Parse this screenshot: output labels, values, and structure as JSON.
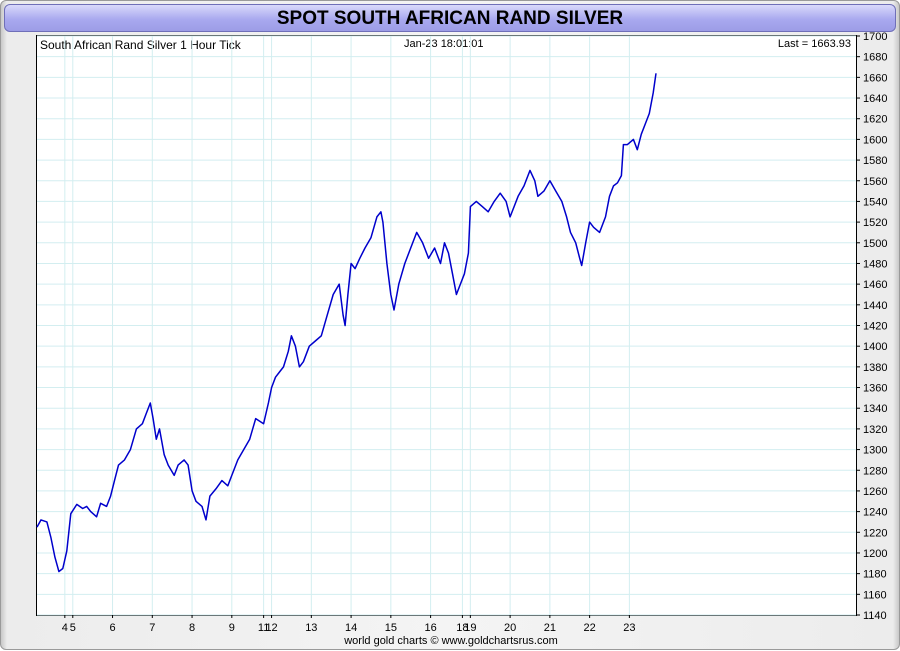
{
  "title": "SPOT SOUTH AFRICAN RAND SILVER",
  "header": {
    "series_label": "South African Rand Silver 1 Hour Tick",
    "timestamp": "Jan-23  18:01:01",
    "last_label": "Last = 1663.93"
  },
  "footer": "world gold charts © www.goldchartsrus.com",
  "colors": {
    "line": "#0000cc",
    "grid": "#d3eef0",
    "title_bar": "#a9a9ef"
  },
  "chart_data": {
    "type": "line",
    "title": "SPOT SOUTH AFRICAN RAND SILVER",
    "series_name": "South African Rand Silver 1 Hour Tick",
    "last_value": 1663.93,
    "xlabel": "",
    "ylabel": "",
    "ylim": [
      1140,
      1700
    ],
    "y_ticks": [
      1140,
      1160,
      1180,
      1200,
      1220,
      1240,
      1260,
      1280,
      1300,
      1320,
      1340,
      1360,
      1380,
      1400,
      1420,
      1440,
      1460,
      1480,
      1500,
      1520,
      1540,
      1560,
      1580,
      1600,
      1620,
      1640,
      1660,
      1680,
      1700
    ],
    "x_range": [
      3.3,
      23.9
    ],
    "x_ticks": [
      {
        "x": 4,
        "label": "4"
      },
      {
        "x": 4.2,
        "label": "5"
      },
      {
        "x": 5.2,
        "label": "6"
      },
      {
        "x": 6.2,
        "label": "7"
      },
      {
        "x": 7.2,
        "label": "8"
      },
      {
        "x": 8.2,
        "label": "9"
      },
      {
        "x": 9.0,
        "label": "11"
      },
      {
        "x": 9.2,
        "label": "12"
      },
      {
        "x": 10.2,
        "label": "13"
      },
      {
        "x": 11.2,
        "label": "14"
      },
      {
        "x": 12.2,
        "label": "15"
      },
      {
        "x": 13.2,
        "label": "16"
      },
      {
        "x": 14.0,
        "label": "18"
      },
      {
        "x": 14.2,
        "label": "19"
      },
      {
        "x": 15.2,
        "label": "20"
      },
      {
        "x": 16.2,
        "label": "21"
      },
      {
        "x": 17.2,
        "label": "22"
      },
      {
        "x": 18.2,
        "label": "23"
      }
    ],
    "grid": true,
    "legend": "none",
    "series": [
      {
        "points": [
          [
            3.3,
            1225
          ],
          [
            3.4,
            1232
          ],
          [
            3.55,
            1230
          ],
          [
            3.65,
            1215
          ],
          [
            3.75,
            1196
          ],
          [
            3.85,
            1182
          ],
          [
            3.95,
            1185
          ],
          [
            4.05,
            1202
          ],
          [
            4.15,
            1238
          ],
          [
            4.3,
            1247
          ],
          [
            4.45,
            1243
          ],
          [
            4.55,
            1245
          ],
          [
            4.65,
            1240
          ],
          [
            4.8,
            1235
          ],
          [
            4.9,
            1248
          ],
          [
            5.05,
            1245
          ],
          [
            5.15,
            1255
          ],
          [
            5.25,
            1270
          ],
          [
            5.35,
            1285
          ],
          [
            5.5,
            1290
          ],
          [
            5.65,
            1300
          ],
          [
            5.8,
            1320
          ],
          [
            5.95,
            1325
          ],
          [
            6.05,
            1335
          ],
          [
            6.15,
            1345
          ],
          [
            6.22,
            1330
          ],
          [
            6.3,
            1310
          ],
          [
            6.38,
            1320
          ],
          [
            6.5,
            1295
          ],
          [
            6.6,
            1285
          ],
          [
            6.75,
            1275
          ],
          [
            6.85,
            1285
          ],
          [
            7.0,
            1290
          ],
          [
            7.1,
            1285
          ],
          [
            7.2,
            1260
          ],
          [
            7.3,
            1250
          ],
          [
            7.45,
            1245
          ],
          [
            7.55,
            1232
          ],
          [
            7.65,
            1255
          ],
          [
            7.8,
            1262
          ],
          [
            7.95,
            1270
          ],
          [
            8.1,
            1265
          ],
          [
            8.2,
            1275
          ],
          [
            8.35,
            1290
          ],
          [
            8.5,
            1300
          ],
          [
            8.65,
            1310
          ],
          [
            8.8,
            1330
          ],
          [
            9.0,
            1325
          ],
          [
            9.12,
            1345
          ],
          [
            9.2,
            1360
          ],
          [
            9.3,
            1370
          ],
          [
            9.4,
            1375
          ],
          [
            9.5,
            1380
          ],
          [
            9.62,
            1395
          ],
          [
            9.7,
            1410
          ],
          [
            9.8,
            1400
          ],
          [
            9.9,
            1380
          ],
          [
            10.0,
            1385
          ],
          [
            10.15,
            1400
          ],
          [
            10.3,
            1405
          ],
          [
            10.45,
            1410
          ],
          [
            10.6,
            1430
          ],
          [
            10.75,
            1450
          ],
          [
            10.9,
            1460
          ],
          [
            11.0,
            1430
          ],
          [
            11.05,
            1420
          ],
          [
            11.12,
            1450
          ],
          [
            11.2,
            1480
          ],
          [
            11.3,
            1475
          ],
          [
            11.42,
            1485
          ],
          [
            11.55,
            1495
          ],
          [
            11.7,
            1505
          ],
          [
            11.85,
            1525
          ],
          [
            11.95,
            1530
          ],
          [
            12.0,
            1520
          ],
          [
            12.1,
            1480
          ],
          [
            12.2,
            1450
          ],
          [
            12.28,
            1435
          ],
          [
            12.4,
            1460
          ],
          [
            12.55,
            1480
          ],
          [
            12.7,
            1495
          ],
          [
            12.85,
            1510
          ],
          [
            13.0,
            1500
          ],
          [
            13.15,
            1485
          ],
          [
            13.3,
            1495
          ],
          [
            13.45,
            1480
          ],
          [
            13.55,
            1500
          ],
          [
            13.65,
            1490
          ],
          [
            13.75,
            1470
          ],
          [
            13.85,
            1450
          ],
          [
            13.95,
            1460
          ],
          [
            14.05,
            1470
          ],
          [
            14.15,
            1490
          ],
          [
            14.2,
            1535
          ],
          [
            14.35,
            1540
          ],
          [
            14.5,
            1535
          ],
          [
            14.65,
            1530
          ],
          [
            14.8,
            1540
          ],
          [
            14.95,
            1548
          ],
          [
            15.1,
            1540
          ],
          [
            15.2,
            1525
          ],
          [
            15.3,
            1535
          ],
          [
            15.4,
            1545
          ],
          [
            15.55,
            1555
          ],
          [
            15.7,
            1570
          ],
          [
            15.82,
            1560
          ],
          [
            15.9,
            1545
          ],
          [
            16.05,
            1550
          ],
          [
            16.2,
            1560
          ],
          [
            16.35,
            1550
          ],
          [
            16.5,
            1540
          ],
          [
            16.62,
            1525
          ],
          [
            16.72,
            1510
          ],
          [
            16.85,
            1500
          ],
          [
            16.95,
            1485
          ],
          [
            17.0,
            1478
          ],
          [
            17.1,
            1500
          ],
          [
            17.2,
            1520
          ],
          [
            17.3,
            1515
          ],
          [
            17.45,
            1510
          ],
          [
            17.6,
            1525
          ],
          [
            17.7,
            1545
          ],
          [
            17.8,
            1555
          ],
          [
            17.9,
            1558
          ],
          [
            18.0,
            1565
          ],
          [
            18.05,
            1595
          ],
          [
            18.15,
            1595
          ],
          [
            18.3,
            1600
          ],
          [
            18.4,
            1590
          ],
          [
            18.5,
            1605
          ],
          [
            18.6,
            1615
          ],
          [
            18.7,
            1625
          ],
          [
            18.8,
            1645
          ],
          [
            18.87,
            1663.93
          ]
        ]
      }
    ]
  }
}
